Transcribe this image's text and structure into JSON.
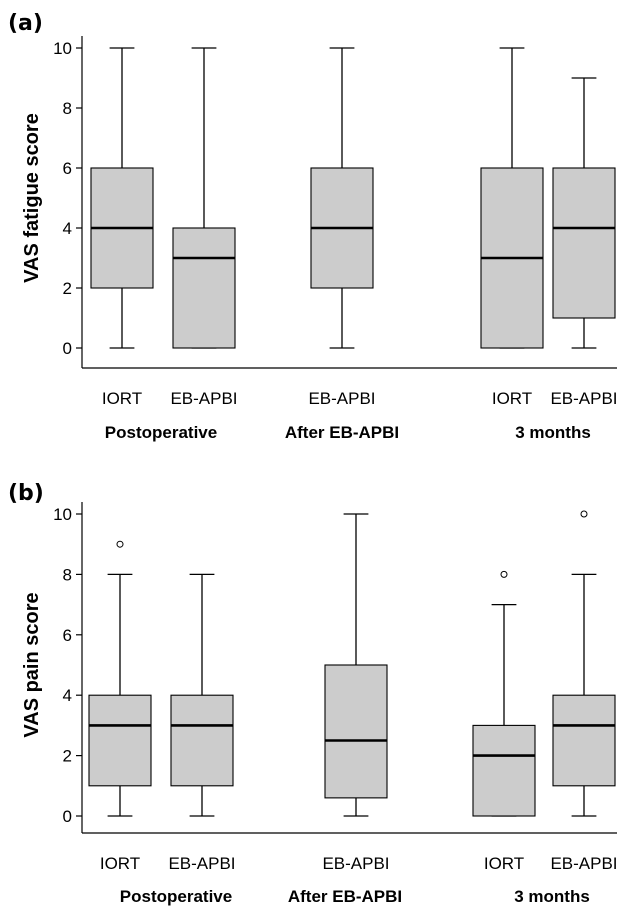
{
  "chart_data": [
    {
      "type": "box",
      "panel_label": "(a)",
      "ylabel": "VAS fatigue score",
      "ylim": [
        0,
        10
      ],
      "yticks": [
        "0",
        "2",
        "4",
        "6",
        "8",
        "10"
      ],
      "boxes": [
        {
          "group": "Postoperative",
          "label": "IORT",
          "min": 0,
          "q1": 2,
          "median": 4,
          "q3": 6,
          "max": 10,
          "outliers": []
        },
        {
          "group": "Postoperative",
          "label": "EB-APBI",
          "min": 0,
          "q1": 0,
          "median": 3,
          "q3": 4,
          "max": 10,
          "outliers": []
        },
        {
          "group": "After EB-APBI",
          "label": "EB-APBI",
          "min": 0,
          "q1": 2,
          "median": 4,
          "q3": 6,
          "max": 10,
          "outliers": []
        },
        {
          "group": "3 months",
          "label": "IORT",
          "min": 0,
          "q1": 0,
          "median": 3,
          "q3": 6,
          "max": 10,
          "outliers": []
        },
        {
          "group": "3 months",
          "label": "EB-APBI",
          "min": 0,
          "q1": 1,
          "median": 4,
          "q3": 6,
          "max": 9,
          "outliers": []
        }
      ],
      "groups": [
        "Postoperative",
        "After EB-APBI",
        "3 months"
      ],
      "box_color": "#cccccc",
      "grid": false
    },
    {
      "type": "box",
      "panel_label": "(b)",
      "ylabel": "VAS pain score",
      "ylim": [
        0,
        10
      ],
      "yticks": [
        "0",
        "2",
        "4",
        "6",
        "8",
        "10"
      ],
      "boxes": [
        {
          "group": "Postoperative",
          "label": "IORT",
          "min": 0,
          "q1": 1,
          "median": 3,
          "q3": 4,
          "max": 8,
          "outliers": [
            9
          ]
        },
        {
          "group": "Postoperative",
          "label": "EB-APBI",
          "min": 0,
          "q1": 1,
          "median": 3,
          "q3": 4,
          "max": 8,
          "outliers": []
        },
        {
          "group": "After EB-APBI",
          "label": "EB-APBI",
          "min": 0,
          "q1": 0.6,
          "median": 2.5,
          "q3": 5,
          "max": 10,
          "outliers": []
        },
        {
          "group": "3 months",
          "label": "IORT",
          "min": 0,
          "q1": 0,
          "median": 2,
          "q3": 3,
          "max": 7,
          "outliers": [
            8
          ]
        },
        {
          "group": "3 months",
          "label": "EB-APBI",
          "min": 0,
          "q1": 1,
          "median": 3,
          "q3": 4,
          "max": 8,
          "outliers": [
            10
          ]
        }
      ],
      "groups": [
        "Postoperative",
        "After EB-APBI",
        "3 months"
      ],
      "box_color": "#cccccc",
      "grid": false
    }
  ]
}
